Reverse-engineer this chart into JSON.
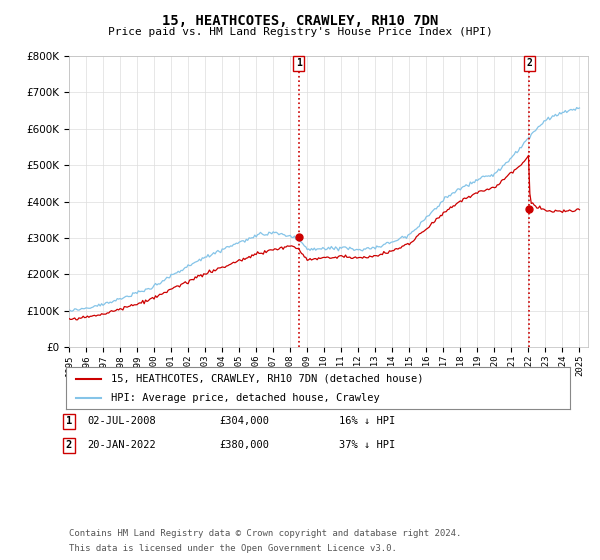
{
  "title": "15, HEATHCOTES, CRAWLEY, RH10 7DN",
  "subtitle": "Price paid vs. HM Land Registry's House Price Index (HPI)",
  "ylim": [
    0,
    800000
  ],
  "yticks": [
    0,
    100000,
    200000,
    300000,
    400000,
    500000,
    600000,
    700000,
    800000
  ],
  "x_start_year": 1995,
  "x_end_year": 2025,
  "hpi_color": "#85c4e8",
  "price_color": "#cc0000",
  "vline_color": "#cc0000",
  "sale1_year": 2008.5,
  "sale1_price": 304000,
  "sale1_label": "1",
  "sale1_date": "02-JUL-2008",
  "sale1_amount": "£304,000",
  "sale1_pct": "16% ↓ HPI",
  "sale2_year": 2022.05,
  "sale2_price": 380000,
  "sale2_label": "2",
  "sale2_date": "20-JAN-2022",
  "sale2_amount": "£380,000",
  "sale2_pct": "37% ↓ HPI",
  "legend_line1": "15, HEATHCOTES, CRAWLEY, RH10 7DN (detached house)",
  "legend_line2": "HPI: Average price, detached house, Crawley",
  "footnote1": "Contains HM Land Registry data © Crown copyright and database right 2024.",
  "footnote2": "This data is licensed under the Open Government Licence v3.0.",
  "background_color": "#ffffff",
  "grid_color": "#dddddd"
}
